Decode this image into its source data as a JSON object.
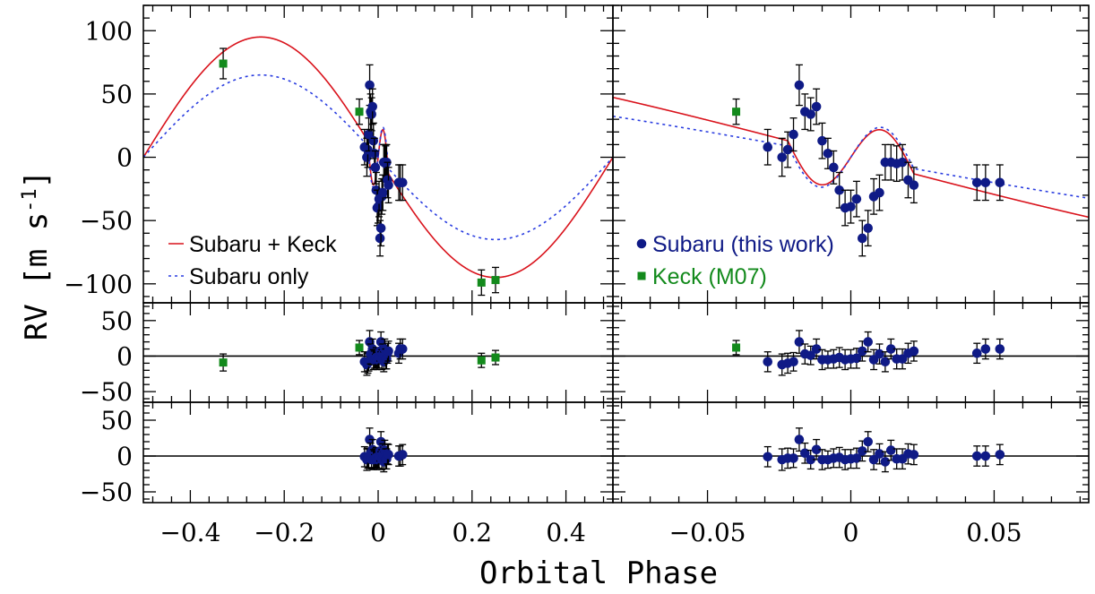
{
  "chart_data": {
    "type": "scatter",
    "title": "",
    "xlabel": "Orbital Phase",
    "ylabel": "RV [m s⁻¹]",
    "ylabel_prefix": "RV",
    "ylabel_units": "m s",
    "ylabel_exp": "-1",
    "panels": {
      "top": {
        "ylim": [
          -115,
          120
        ],
        "yticks": [
          -100,
          -50,
          0,
          50,
          100
        ],
        "ytick_labels": [
          "−100",
          "−50",
          "0",
          "50",
          "100"
        ]
      },
      "resid1": {
        "ylim": [
          -65,
          75
        ],
        "yticks": [
          -50,
          0,
          50
        ],
        "ytick_labels": [
          "−50",
          "0",
          "50"
        ]
      },
      "resid2": {
        "ylim": [
          -65,
          75
        ],
        "yticks": [
          -50,
          0,
          50
        ],
        "ytick_labels": [
          "−50",
          "0",
          "50"
        ]
      }
    },
    "columns": {
      "left": {
        "xlim": [
          -0.5,
          0.5
        ],
        "xticks": [
          -0.4,
          -0.2,
          0,
          0.2,
          0.4
        ],
        "xtick_labels": [
          "−0.4",
          "−0.2",
          "0",
          "0.2",
          "0.4"
        ]
      },
      "right": {
        "xlim": [
          -0.083,
          0.083
        ],
        "xticks": [
          -0.05,
          0,
          0.05
        ],
        "xtick_labels": [
          "−0.05",
          "0",
          "0.05"
        ]
      }
    },
    "model": {
      "K_keck": 95,
      "K_subaru": 65,
      "rm_amplitude": 28,
      "rm_half_width": 0.022
    },
    "series": [
      {
        "name": "Subaru (this work)",
        "marker": "circle",
        "color": "#0f1a86",
        "x": [
          -0.029,
          -0.024,
          -0.022,
          -0.02,
          -0.018,
          -0.016,
          -0.014,
          -0.012,
          -0.01,
          -0.008,
          -0.006,
          -0.004,
          -0.002,
          0.0,
          0.002,
          0.004,
          0.006,
          0.008,
          0.01,
          0.012,
          0.014,
          0.016,
          0.018,
          0.02,
          0.022,
          0.044,
          0.047,
          0.052
        ],
        "y": [
          8,
          0,
          6,
          18,
          57,
          36,
          34,
          40,
          13,
          3,
          -8,
          -26,
          -40,
          -39,
          -33,
          -64,
          -56,
          -31,
          -28,
          -4,
          -4,
          -5,
          -4,
          -18,
          -22,
          -20,
          -20,
          -20
        ],
        "err": [
          14,
          15,
          14,
          13,
          16,
          14,
          13,
          14,
          14,
          12,
          13,
          14,
          14,
          13,
          14,
          14,
          14,
          14,
          14,
          14,
          14,
          14,
          14,
          14,
          14,
          14,
          14,
          14
        ],
        "resid1": [
          -8,
          -12,
          -10,
          -8,
          20,
          3,
          1,
          10,
          -5,
          -5,
          -4,
          -2,
          -5,
          -4,
          -3,
          7,
          20,
          -5,
          3,
          -8,
          10,
          -4,
          -4,
          4,
          7,
          4,
          10,
          10
        ],
        "resid2": [
          -1,
          -5,
          -3,
          -3,
          23,
          4,
          -5,
          9,
          -5,
          -5,
          -3,
          -2,
          -5,
          -4,
          -3,
          7,
          20,
          -5,
          3,
          -8,
          8,
          -4,
          -4,
          3,
          2,
          0,
          0,
          2
        ]
      },
      {
        "name": "Keck (M07)",
        "marker": "square",
        "color": "#138a1c",
        "x": [
          -0.33,
          -0.04,
          0.22,
          0.25
        ],
        "y": [
          74,
          36,
          -99,
          -97
        ],
        "err": [
          12,
          10,
          10,
          10
        ],
        "resid1": [
          -9,
          12,
          -6,
          -2
        ]
      }
    ],
    "legend": [
      {
        "label": "Subaru + Keck",
        "style": "solid",
        "color": "#d9121b"
      },
      {
        "label": "Subaru only",
        "style": "dotted",
        "color": "#2a3de0"
      },
      {
        "label": "Subaru (this work)",
        "marker": "circle",
        "color": "#0f1a86"
      },
      {
        "label": "Keck (M07)",
        "marker": "square",
        "color": "#138a1c"
      }
    ]
  }
}
